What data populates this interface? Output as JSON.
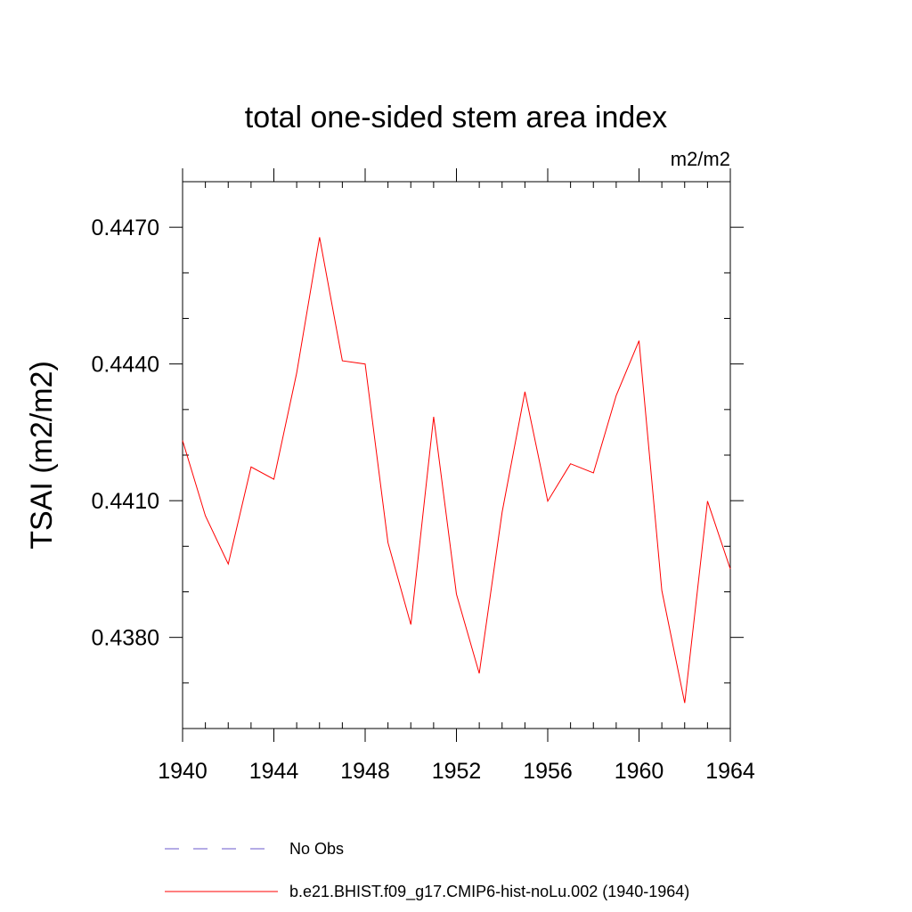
{
  "chart_data": {
    "type": "line",
    "title": "total one-sided stem area index",
    "units_label": "m2/m2",
    "ylabel": "TSAI  (m2/m2)",
    "xlabel": "",
    "xlim": [
      1940,
      1964
    ],
    "ylim": [
      0.436,
      0.448
    ],
    "x_ticks": [
      1940,
      1944,
      1948,
      1952,
      1956,
      1960,
      1964
    ],
    "x_tick_labels": [
      "1940",
      "1944",
      "1948",
      "1952",
      "1956",
      "1960",
      "1964"
    ],
    "y_ticks": [
      0.438,
      0.441,
      0.444,
      0.447
    ],
    "y_tick_labels": [
      "0.4380",
      "0.4410",
      "0.4440",
      "0.4470"
    ],
    "grid": false,
    "legend_position": "bottom",
    "series": [
      {
        "name": "b.e21.BHIST.f09_g17.CMIP6-hist-noLu.002 (1940-1964)",
        "color": "#ff0000",
        "dash": "solid",
        "x": [
          1940,
          1941,
          1942,
          1943,
          1944,
          1945,
          1946,
          1947,
          1948,
          1949,
          1950,
          1951,
          1952,
          1953,
          1954,
          1955,
          1956,
          1957,
          1958,
          1959,
          1960,
          1961,
          1962,
          1963,
          1964
        ],
        "values": [
          0.44232,
          0.44067,
          0.43961,
          0.44174,
          0.44147,
          0.4438,
          0.44678,
          0.44407,
          0.444,
          0.44008,
          0.43828,
          0.44284,
          0.43895,
          0.43721,
          0.44075,
          0.44339,
          0.44099,
          0.44181,
          0.44161,
          0.44331,
          0.44451,
          0.43903,
          0.43656,
          0.44099,
          0.4395
        ]
      }
    ],
    "legend": [
      {
        "label": "No Obs",
        "color": "#6a5acd",
        "dash": "dashed"
      },
      {
        "label": "b.e21.BHIST.f09_g17.CMIP6-hist-noLu.002 (1940-1964)",
        "color": "#ff0000",
        "dash": "solid"
      }
    ]
  }
}
